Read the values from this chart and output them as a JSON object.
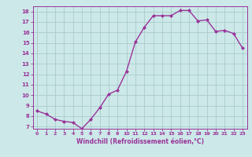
{
  "x": [
    0,
    1,
    2,
    3,
    4,
    5,
    6,
    7,
    8,
    9,
    10,
    11,
    12,
    13,
    14,
    15,
    16,
    17,
    18,
    19,
    20,
    21,
    22,
    23
  ],
  "y": [
    8.5,
    8.2,
    7.7,
    7.5,
    7.4,
    6.8,
    7.7,
    8.8,
    10.1,
    10.5,
    12.3,
    15.1,
    16.5,
    17.6,
    17.6,
    17.6,
    18.1,
    18.1,
    17.1,
    17.2,
    16.1,
    16.2,
    15.9,
    14.5
  ],
  "line_color": "#993399",
  "marker": "D",
  "marker_size": 2.0,
  "bg_color": "#cce8e8",
  "grid_color": "#aacccc",
  "xlabel": "Windchill (Refroidissement éolien,°C)",
  "xlabel_color": "#993399",
  "tick_color": "#993399",
  "ylabel_ticks": [
    7,
    8,
    9,
    10,
    11,
    12,
    13,
    14,
    15,
    16,
    17,
    18
  ],
  "xlabel_ticks": [
    0,
    1,
    2,
    3,
    4,
    5,
    6,
    7,
    8,
    9,
    10,
    11,
    12,
    13,
    14,
    15,
    16,
    17,
    18,
    19,
    20,
    21,
    22,
    23
  ],
  "ylim": [
    6.8,
    18.5
  ],
  "xlim": [
    -0.5,
    23.5
  ],
  "axis_color": "#993399",
  "line_width": 1.0
}
